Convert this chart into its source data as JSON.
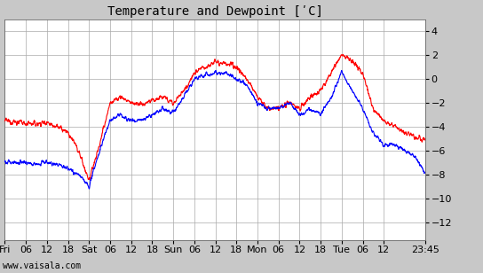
{
  "title": "Temperature and Dewpoint [ʹC]",
  "yticks": [
    -12,
    -10,
    -8,
    -6,
    -4,
    -2,
    0,
    2,
    4
  ],
  "ylim": [
    -13.5,
    5.0
  ],
  "xtick_labels": [
    "Fri",
    "06",
    "12",
    "18",
    "Sat",
    "06",
    "12",
    "18",
    "Sun",
    "06",
    "12",
    "18",
    "Mon",
    "06",
    "12",
    "18",
    "Tue",
    "06",
    "12",
    "23:45"
  ],
  "xtick_positions": [
    0,
    6,
    12,
    18,
    24,
    30,
    36,
    42,
    48,
    54,
    60,
    66,
    72,
    78,
    84,
    90,
    96,
    102,
    108,
    119.75
  ],
  "xlim": [
    0,
    119.75
  ],
  "watermark": "www.vaisala.com",
  "bg_color": "#c8c8c8",
  "plot_bg_color": "#ffffff",
  "grid_color": "#aaaaaa",
  "temp_color": "#ff0000",
  "dewp_color": "#0000ff",
  "line_width": 0.8,
  "title_fontsize": 10,
  "tick_fontsize": 8,
  "watermark_fontsize": 7
}
